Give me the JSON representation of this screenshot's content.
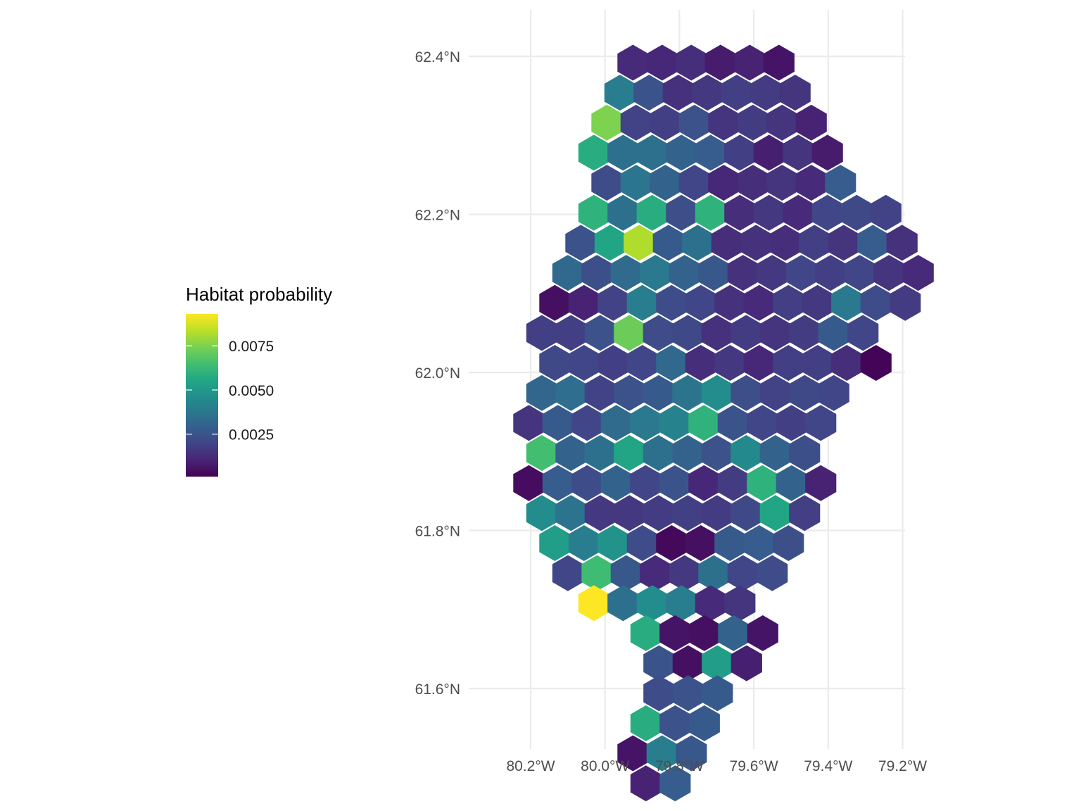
{
  "legend": {
    "title": "Habitat probability",
    "labels": [
      {
        "text": "0.0075",
        "value": 0.0075
      },
      {
        "text": "0.0050",
        "value": 0.005
      },
      {
        "text": "0.0025",
        "value": 0.0025
      }
    ],
    "min_value": 0.0001,
    "max_value": 0.0093,
    "palette": "viridis"
  },
  "axes": {
    "x_ticks": [
      {
        "label": "80.2°W",
        "value": -80.2
      },
      {
        "label": "80.0°W",
        "value": -80.0
      },
      {
        "label": "79.8°W",
        "value": -79.8
      },
      {
        "label": "79.6°W",
        "value": -79.6
      },
      {
        "label": "79.4°W",
        "value": -79.4
      },
      {
        "label": "79.2°W",
        "value": -79.2
      }
    ],
    "y_ticks": [
      {
        "label": "62.4°N",
        "value": 62.4
      },
      {
        "label": "62.2°N",
        "value": 62.2
      },
      {
        "label": "62.0°N",
        "value": 62.0
      },
      {
        "label": "61.8°N",
        "value": 61.8
      },
      {
        "label": "61.6°N",
        "value": 61.6
      }
    ],
    "x_range": [
      -80.3,
      -79.17
    ],
    "y_range": [
      61.56,
      62.46
    ]
  },
  "map_data": {
    "cell_shape": "hexagon",
    "grid": "hexagonal lattice in lon/lat, cell values = habitat probability",
    "rows": [
      {
        "lat": 62.392,
        "lon_start": -79.925,
        "values": [
          0.0012,
          0.0011,
          0.0013,
          0.0008,
          0.001,
          0.0006
        ]
      },
      {
        "lat": 62.354,
        "lon_start": -79.96,
        "values": [
          0.004,
          0.0025,
          0.0014,
          0.0016,
          0.0018,
          0.0017,
          0.0015
        ]
      },
      {
        "lat": 62.316,
        "lon_start": -79.995,
        "values": [
          0.0075,
          0.0019,
          0.0018,
          0.0024,
          0.0015,
          0.0017,
          0.0015,
          0.001
        ]
      },
      {
        "lat": 62.278,
        "lon_start": -80.03,
        "values": [
          0.0058,
          0.0035,
          0.0035,
          0.003,
          0.0028,
          0.0018,
          0.0009,
          0.0015,
          0.0008
        ]
      },
      {
        "lat": 62.24,
        "lon_start": -79.995,
        "values": [
          0.0022,
          0.0037,
          0.003,
          0.002,
          0.0011,
          0.0013,
          0.0015,
          0.0012,
          0.0028
        ]
      },
      {
        "lat": 62.202,
        "lon_start": -80.03,
        "values": [
          0.006,
          0.0035,
          0.0058,
          0.0023,
          0.006,
          0.0013,
          0.0016,
          0.0012,
          0.002,
          0.0021,
          0.0019
        ]
      },
      {
        "lat": 62.164,
        "lon_start": -80.065,
        "values": [
          0.0024,
          0.0055,
          0.0082,
          0.0027,
          0.0035,
          0.0013,
          0.0014,
          0.0013,
          0.0018,
          0.0015,
          0.0028,
          0.0014
        ]
      },
      {
        "lat": 62.126,
        "lon_start": -80.1,
        "values": [
          0.0032,
          0.0023,
          0.0033,
          0.0038,
          0.003,
          0.0026,
          0.0014,
          0.0016,
          0.002,
          0.0018,
          0.002,
          0.0015,
          0.0012
        ]
      },
      {
        "lat": 62.088,
        "lon_start": -80.135,
        "values": [
          0.0005,
          0.001,
          0.0019,
          0.004,
          0.0022,
          0.002,
          0.0014,
          0.0012,
          0.0018,
          0.0016,
          0.0038,
          0.0022,
          0.0017
        ]
      },
      {
        "lat": 62.05,
        "lon_start": -80.17,
        "values": [
          0.0018,
          0.0018,
          0.0024,
          0.0072,
          0.0022,
          0.0021,
          0.0014,
          0.0017,
          0.0015,
          0.0017,
          0.0027,
          0.002
        ]
      },
      {
        "lat": 62.012,
        "lon_start": -80.135,
        "values": [
          0.0021,
          0.002,
          0.0018,
          0.002,
          0.0032,
          0.0013,
          0.0016,
          0.0011,
          0.0018,
          0.0018,
          0.0013,
          0.0002
        ]
      },
      {
        "lat": 61.974,
        "lon_start": -80.17,
        "values": [
          0.0031,
          0.0034,
          0.0019,
          0.0024,
          0.0027,
          0.0036,
          0.0045,
          0.0023,
          0.0019,
          0.0021,
          0.002
        ]
      },
      {
        "lat": 61.936,
        "lon_start": -80.205,
        "values": [
          0.0015,
          0.0027,
          0.002,
          0.0033,
          0.0038,
          0.0042,
          0.006,
          0.0025,
          0.002,
          0.0018,
          0.002
        ]
      },
      {
        "lat": 61.898,
        "lon_start": -80.17,
        "values": [
          0.0065,
          0.003,
          0.0035,
          0.0055,
          0.0035,
          0.003,
          0.0024,
          0.0044,
          0.003,
          0.0023
        ]
      },
      {
        "lat": 61.86,
        "lon_start": -80.205,
        "values": [
          0.0004,
          0.0028,
          0.0022,
          0.003,
          0.002,
          0.0025,
          0.0011,
          0.0017,
          0.006,
          0.003,
          0.001
        ]
      },
      {
        "lat": 61.822,
        "lon_start": -80.17,
        "values": [
          0.0045,
          0.0036,
          0.0016,
          0.0016,
          0.0017,
          0.0018,
          0.0017,
          0.0021,
          0.0055,
          0.0018
        ]
      },
      {
        "lat": 61.784,
        "lon_start": -80.135,
        "values": [
          0.0052,
          0.004,
          0.0048,
          0.0022,
          0.0003,
          0.0005,
          0.0027,
          0.0028,
          0.0023
        ]
      },
      {
        "lat": 61.746,
        "lon_start": -80.1,
        "values": [
          0.002,
          0.0064,
          0.0026,
          0.0012,
          0.0016,
          0.0035,
          0.002,
          0.0022
        ]
      },
      {
        "lat": 61.708,
        "lon_start": -80.03,
        "values": [
          0.0093,
          0.0035,
          0.0045,
          0.004,
          0.0012,
          0.0015
        ]
      },
      {
        "lat": 61.67,
        "lon_start": -79.89,
        "values": [
          0.0058,
          0.0006,
          0.0005,
          0.003,
          0.0006
        ]
      },
      {
        "lat": 61.632,
        "lon_start": -79.855,
        "values": [
          0.0025,
          0.0005,
          0.0052,
          0.0009
        ]
      },
      {
        "lat": 61.594,
        "lon_start": -79.855,
        "values": [
          0.0022,
          0.0024,
          0.0027
        ]
      },
      {
        "lat": 61.556,
        "lon_start": -79.89,
        "values": [
          0.0058,
          0.0024,
          0.0027
        ]
      },
      {
        "lat": 61.518,
        "lon_start": -79.925,
        "values": [
          0.0006,
          0.004,
          0.0026
        ]
      },
      {
        "lat": 61.48,
        "lon_start": -79.89,
        "values": [
          0.001,
          0.0028
        ]
      }
    ]
  }
}
